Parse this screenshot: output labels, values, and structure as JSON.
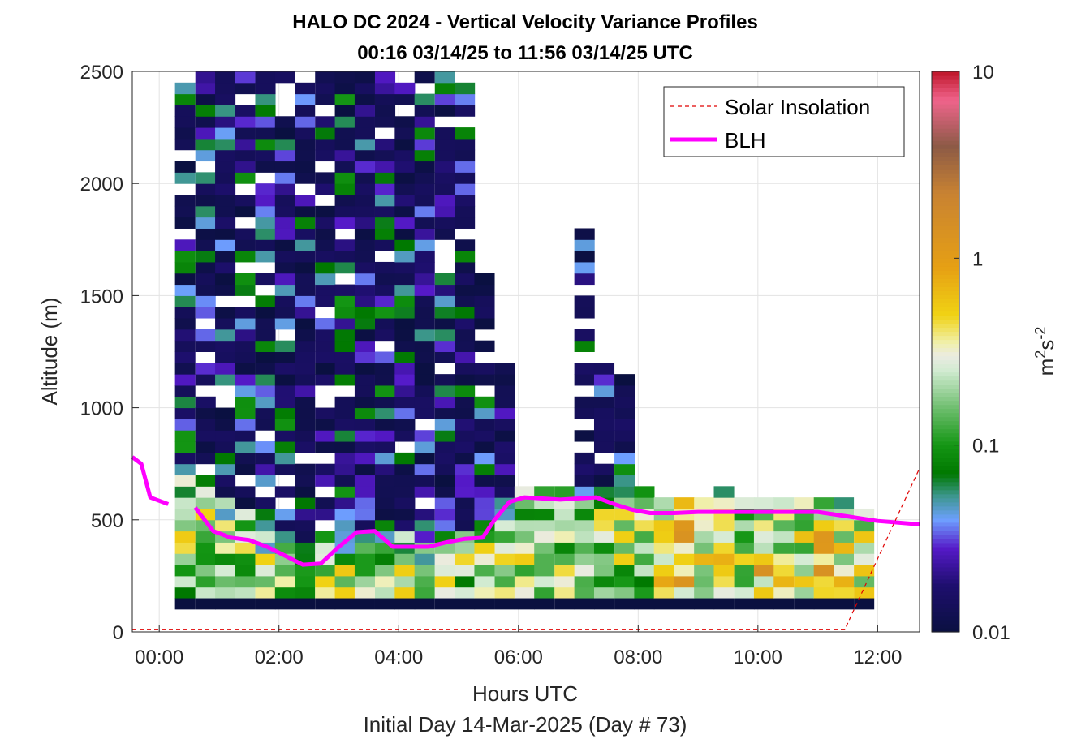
{
  "chart_data": {
    "type": "heatmap",
    "title": "HALO DC 2024 - Vertical Velocity Variance Profiles",
    "subtitle": "00:16 03/14/25 to 11:56 03/14/25  UTC",
    "xlabel": "Hours UTC",
    "xlabel2": "Initial Day 14-Mar-2025 (Day # 73)",
    "ylabel": "Altitude (m)",
    "colorbar_label_base": "m",
    "colorbar_label_sup1": "2",
    "colorbar_label_mid": "s",
    "colorbar_label_sup2": "-2",
    "xlim": [
      -0.45,
      12.7
    ],
    "ylim": [
      0,
      2500
    ],
    "x_ticks": [
      0,
      2,
      4,
      6,
      8,
      10,
      12
    ],
    "x_tick_labels": [
      "00:00",
      "02:00",
      "04:00",
      "06:00",
      "08:00",
      "10:00",
      "12:00"
    ],
    "y_ticks": [
      0,
      500,
      1000,
      1500,
      2000,
      2500
    ],
    "y_tick_labels": [
      "0",
      "500",
      "1000",
      "1500",
      "2000",
      "2500"
    ],
    "colorbar_scale": "log",
    "colorbar_range": [
      0.01,
      10
    ],
    "colorbar_ticks": [
      0.01,
      0.1,
      1,
      10
    ],
    "colorbar_tick_labels": [
      "0.01",
      "0.1",
      "1",
      "10"
    ],
    "grid": true,
    "legend_position": "top-right",
    "legend": [
      "Solar Insolation",
      "BLH"
    ],
    "legend_colors": [
      "#e00000",
      "#ff00ff"
    ],
    "time_bin_hours": 0.333,
    "altitude_bin_m": 50,
    "series": [
      {
        "name": "BLH",
        "type": "line",
        "color": "#ff00ff",
        "x": [
          -0.45,
          -0.3,
          -0.15,
          0.15,
          0.6,
          0.9,
          1.2,
          1.5,
          1.8,
          2.1,
          2.4,
          2.7,
          3.0,
          3.3,
          3.6,
          3.9,
          4.2,
          4.5,
          4.8,
          5.1,
          5.4,
          5.6,
          5.85,
          6.1,
          6.4,
          6.7,
          7.0,
          7.3,
          7.6,
          7.9,
          8.2,
          8.6,
          9.0,
          9.5,
          10.0,
          10.5,
          11.0,
          11.5,
          12.0,
          12.7
        ],
        "y": [
          780,
          750,
          600,
          570,
          555,
          450,
          420,
          410,
          380,
          340,
          300,
          305,
          380,
          445,
          450,
          380,
          380,
          380,
          400,
          415,
          420,
          500,
          580,
          600,
          595,
          590,
          595,
          600,
          570,
          545,
          530,
          530,
          535,
          535,
          535,
          535,
          535,
          515,
          495,
          480
        ],
        "gaps_after_index": [
          3
        ]
      },
      {
        "name": "Solar Insolation",
        "type": "line",
        "style": "dashed",
        "color": "#e00000",
        "x": [
          -0.45,
          11.45,
          12.7
        ],
        "y": [
          10,
          10,
          730
        ]
      }
    ],
    "heatmap_profiles": [
      {
        "t": 0.43,
        "top": 2450,
        "surface": "low",
        "boundary_top": 680
      },
      {
        "t": 0.77,
        "top": 2500,
        "surface": "low",
        "boundary_top": 650
      },
      {
        "t": 1.1,
        "top": 2500,
        "surface": "low",
        "boundary_top": 600
      },
      {
        "t": 1.43,
        "top": 2500,
        "surface": "low",
        "boundary_top": 550
      },
      {
        "t": 1.77,
        "top": 2500,
        "surface": "low",
        "boundary_top": 450
      },
      {
        "t": 2.1,
        "top": 2500,
        "surface": "low",
        "boundary_top": 420
      },
      {
        "t": 2.43,
        "top": 2500,
        "surface": "low",
        "boundary_top": 380
      },
      {
        "t": 2.77,
        "top": 2500,
        "surface": "low",
        "boundary_top": 380
      },
      {
        "t": 3.1,
        "top": 2500,
        "surface": "low",
        "boundary_top": 420
      },
      {
        "t": 3.43,
        "top": 2500,
        "surface": "low",
        "boundary_top": 450
      },
      {
        "t": 3.77,
        "top": 2500,
        "surface": "low",
        "boundary_top": 480
      },
      {
        "t": 4.1,
        "top": 2500,
        "surface": "low",
        "boundary_top": 420
      },
      {
        "t": 4.43,
        "top": 2500,
        "surface": "low",
        "boundary_top": 400
      },
      {
        "t": 4.77,
        "top": 2500,
        "surface": "low",
        "boundary_top": 420
      },
      {
        "t": 5.1,
        "top": 2500,
        "surface": "low",
        "boundary_top": 450
      },
      {
        "t": 5.43,
        "top": 1600,
        "surface": "low",
        "boundary_top": 480
      },
      {
        "t": 5.77,
        "top": 1200,
        "surface": "low",
        "boundary_top": 600
      },
      {
        "t": 6.1,
        "top": 620,
        "surface": "low",
        "boundary_top": 620
      },
      {
        "t": 6.43,
        "top": 620,
        "surface": "low",
        "boundary_top": 620
      },
      {
        "t": 6.77,
        "top": 650,
        "surface": "low",
        "boundary_top": 650
      },
      {
        "t": 7.1,
        "top": 1800,
        "surface": "low",
        "boundary_top": 650
      },
      {
        "t": 7.43,
        "top": 1200,
        "surface": "low",
        "boundary_top": 620
      },
      {
        "t": 7.77,
        "top": 1150,
        "surface": "low",
        "boundary_top": 620
      },
      {
        "t": 8.1,
        "top": 620,
        "surface": "low",
        "boundary_top": 620
      },
      {
        "t": 8.43,
        "top": 600,
        "surface": "high",
        "boundary_top": 600
      },
      {
        "t": 8.77,
        "top": 600,
        "surface": "high",
        "boundary_top": 600
      },
      {
        "t": 9.1,
        "top": 600,
        "surface": "mid",
        "boundary_top": 600
      },
      {
        "t": 9.43,
        "top": 620,
        "surface": "mid",
        "boundary_top": 620
      },
      {
        "t": 9.77,
        "top": 600,
        "surface": "mid",
        "boundary_top": 600
      },
      {
        "t": 10.1,
        "top": 600,
        "surface": "high",
        "boundary_top": 600
      },
      {
        "t": 10.43,
        "top": 600,
        "surface": "mid",
        "boundary_top": 600
      },
      {
        "t": 10.77,
        "top": 600,
        "surface": "mid",
        "boundary_top": 600
      },
      {
        "t": 11.1,
        "top": 600,
        "surface": "high",
        "boundary_top": 600
      },
      {
        "t": 11.43,
        "top": 580,
        "surface": "mid",
        "boundary_top": 580
      },
      {
        "t": 11.77,
        "top": 550,
        "surface": "mid",
        "boundary_top": 550
      }
    ],
    "bottom_row_value": 0.01,
    "bottom_row_range": [
      100,
      150
    ]
  }
}
